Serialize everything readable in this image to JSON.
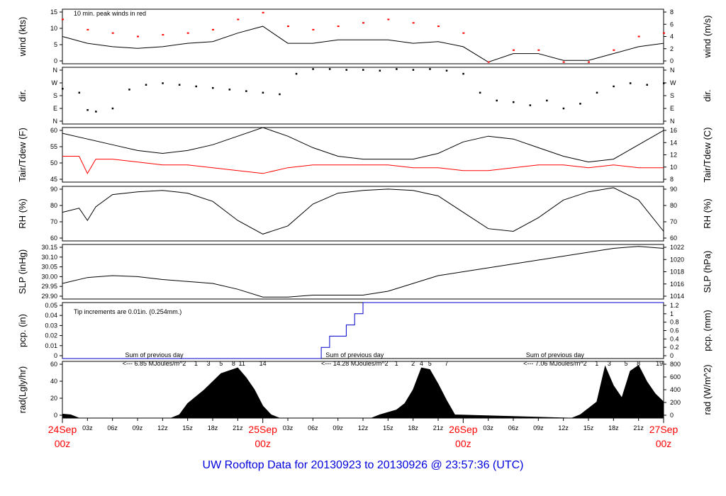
{
  "footer": {
    "title": "UW Rooftop Data for 20130923  to  20130926 @ 23:57:36  (UTC)"
  },
  "colors": {
    "main": "#000000",
    "dew": "#ff0000",
    "peak": "#ff0000",
    "pcp": "#0000cc",
    "sum": "#9900cc"
  },
  "chart_data": [
    {
      "type": "line",
      "id": "wind",
      "left_label": "wind (kts)",
      "right_label": "wind (m/s)",
      "left_ticks": [
        "0",
        "5",
        "10",
        "15"
      ],
      "right_ticks": [
        "0",
        "2",
        "4",
        "6",
        "8"
      ],
      "ylim": [
        0,
        16
      ],
      "annotation": "10 min. peak winds in red",
      "series": [
        {
          "name": "wind",
          "x": [
            0,
            3,
            6,
            9,
            12,
            15,
            18,
            21,
            24,
            27,
            30,
            33,
            36,
            39,
            42,
            45,
            48,
            51,
            54,
            57,
            60,
            63,
            66,
            69,
            72
          ],
          "y": [
            8,
            6,
            5,
            4.5,
            5,
            6,
            6.5,
            9,
            11,
            6,
            6,
            7,
            7,
            7,
            6,
            6.5,
            5,
            0.5,
            3,
            3,
            1,
            1,
            3,
            5,
            6
          ]
        },
        {
          "name": "10 min. peak winds",
          "x": [
            0,
            3,
            6,
            9,
            12,
            15,
            18,
            21,
            24,
            27,
            30,
            33,
            36,
            39,
            42,
            45,
            48,
            51,
            54,
            57,
            60,
            63,
            66,
            69,
            72
          ],
          "y": [
            13,
            10,
            9,
            8,
            8.5,
            9,
            10,
            13,
            15,
            11,
            10,
            11,
            12,
            13,
            12,
            11,
            9,
            0.5,
            4,
            4,
            0.5,
            0.5,
            4,
            8,
            9
          ]
        }
      ]
    },
    {
      "type": "scatter",
      "id": "dir",
      "left_label": "dir.",
      "right_label": "dir.",
      "left_ticks": [
        "N",
        "E",
        "S",
        "W",
        "N"
      ],
      "right_ticks": [
        "N",
        "E",
        "S",
        "W",
        "N"
      ],
      "ylim": [
        0,
        360
      ],
      "series": [
        {
          "name": "direction",
          "x": [
            0,
            2,
            3,
            4,
            6,
            8,
            10,
            12,
            14,
            16,
            18,
            20,
            22,
            24,
            26,
            28,
            30,
            32,
            34,
            36,
            38,
            40,
            42,
            44,
            46,
            48,
            50,
            52,
            54,
            56,
            58,
            60,
            62,
            64,
            66,
            68,
            70,
            72
          ],
          "y": [
            225,
            200,
            90,
            80,
            100,
            220,
            250,
            260,
            250,
            240,
            230,
            220,
            210,
            200,
            190,
            320,
            350,
            350,
            345,
            345,
            340,
            350,
            345,
            350,
            340,
            320,
            200,
            150,
            140,
            120,
            150,
            100,
            130,
            200,
            240,
            260,
            250,
            260
          ]
        }
      ]
    },
    {
      "type": "line",
      "id": "temp",
      "left_label": "Tair/Tdew (F)",
      "right_label": "Tair/Tdew (C)",
      "left_ticks": [
        "45",
        "50",
        "55",
        "60"
      ],
      "right_ticks": [
        "8",
        "10",
        "12",
        "14",
        "16"
      ],
      "ylim": [
        43,
        62
      ],
      "series": [
        {
          "name": "Tair",
          "x": [
            0,
            3,
            6,
            9,
            12,
            15,
            18,
            21,
            24,
            27,
            30,
            33,
            36,
            39,
            42,
            45,
            48,
            51,
            54,
            57,
            60,
            63,
            66,
            69,
            72
          ],
          "y": [
            60,
            58,
            56,
            54,
            53,
            54,
            56,
            59,
            62,
            59,
            55,
            52,
            51,
            51,
            51,
            53,
            57,
            59,
            58,
            55,
            52,
            50,
            51,
            56,
            61
          ]
        },
        {
          "name": "Tdew",
          "x": [
            0,
            2,
            3,
            4,
            6,
            9,
            12,
            15,
            18,
            21,
            24,
            27,
            30,
            33,
            36,
            39,
            42,
            45,
            48,
            51,
            54,
            57,
            60,
            63,
            66,
            69,
            72
          ],
          "y": [
            52,
            52,
            46,
            51,
            51,
            50,
            49,
            49,
            48,
            47,
            46,
            48,
            49,
            49,
            49,
            49,
            48,
            48,
            47,
            47,
            48,
            49,
            49,
            48,
            49,
            48,
            48
          ]
        }
      ]
    },
    {
      "type": "line",
      "id": "rh",
      "left_label": "RH (%)",
      "right_label": "RH (%)",
      "left_ticks": [
        "60",
        "70",
        "80",
        "90"
      ],
      "right_ticks": [
        "60",
        "70",
        "80",
        "90"
      ],
      "ylim": [
        55,
        95
      ],
      "series": [
        {
          "name": "RH",
          "x": [
            0,
            2,
            3,
            4,
            6,
            9,
            12,
            15,
            18,
            21,
            24,
            27,
            30,
            33,
            36,
            39,
            42,
            45,
            48,
            51,
            54,
            57,
            60,
            63,
            66,
            69,
            72
          ],
          "y": [
            76,
            79,
            70,
            80,
            89,
            91,
            92,
            90,
            84,
            70,
            60,
            66,
            82,
            90,
            92,
            93,
            92,
            88,
            76,
            64,
            62,
            72,
            85,
            91,
            94,
            85,
            62
          ]
        }
      ]
    },
    {
      "type": "line",
      "id": "slp",
      "left_label": "SLP (inHg)",
      "right_label": "SLP (hPa)",
      "left_ticks": [
        "29.90",
        "29.95",
        "30.00",
        "30.05",
        "30.10",
        "30.15"
      ],
      "right_ticks": [
        "1014",
        "1016",
        "1018",
        "1020",
        "1022"
      ],
      "ylim": [
        29.9,
        30.18
      ],
      "series": [
        {
          "name": "SLP",
          "x": [
            0,
            3,
            6,
            9,
            12,
            15,
            18,
            21,
            24,
            27,
            30,
            33,
            36,
            39,
            42,
            45,
            48,
            51,
            54,
            57,
            60,
            63,
            66,
            69,
            72
          ],
          "y": [
            29.98,
            30.01,
            30.02,
            30.015,
            30.0,
            29.99,
            29.98,
            29.95,
            29.91,
            29.91,
            29.92,
            29.92,
            29.92,
            29.94,
            29.98,
            30.02,
            30.04,
            30.06,
            30.08,
            30.1,
            30.12,
            30.14,
            30.16,
            30.17,
            30.16
          ]
        }
      ]
    },
    {
      "type": "line",
      "id": "pcp",
      "left_label": "pcp. (in)",
      "right_label": "pcp. (mm)",
      "left_ticks": [
        "0",
        "0.01",
        "0.02",
        "0.03",
        "0.04",
        "0.05"
      ],
      "right_ticks": [
        "0",
        "0.2",
        "0.4",
        "0.6",
        "0.8",
        "1",
        "1.2"
      ],
      "ylim": [
        0,
        0.05
      ],
      "annotation": "Tip increments are 0.01in. (0.254mm.)",
      "series": [
        {
          "name": "precipitation",
          "x": [
            0,
            31,
            31,
            32,
            32,
            34,
            34,
            35,
            35,
            36,
            36,
            72
          ],
          "y": [
            0,
            0,
            0.01,
            0.01,
            0.02,
            0.02,
            0.03,
            0.03,
            0.04,
            0.04,
            0.05,
            0.05
          ]
        }
      ]
    },
    {
      "type": "area",
      "id": "rad",
      "left_label": "rad(Lgly/hr)",
      "right_label": "rad (W/m^2)",
      "left_ticks": [
        "0",
        "20",
        "40",
        "60"
      ],
      "right_ticks": [
        "0",
        "200",
        "400",
        "600",
        "800"
      ],
      "ylim": [
        0,
        70
      ],
      "annotations": [
        {
          "line1": "Sum of previous day",
          "line2": "<--- 6.85 MJoules/m^2",
          "hour": 11
        },
        {
          "line1": "Sum of previous day",
          "line2": "<--- 14.28 MJoules/m^2",
          "hour": 35
        },
        {
          "line1": "Sum of previous day",
          "line2": "<--- 7.06 MJoules/m^2",
          "hour": 59
        }
      ],
      "hour_markers": [
        {
          "label": "1",
          "hour": 16
        },
        {
          "label": "3",
          "hour": 17.5
        },
        {
          "label": "5",
          "hour": 19
        },
        {
          "label": "8",
          "hour": 20.5
        },
        {
          "label": "11",
          "hour": 21.5
        },
        {
          "label": "14",
          "hour": 24
        },
        {
          "label": "1",
          "hour": 40
        },
        {
          "label": "2",
          "hour": 42
        },
        {
          "label": "4",
          "hour": 43
        },
        {
          "label": "5",
          "hour": 44
        },
        {
          "label": "7",
          "hour": 46
        },
        {
          "label": "1",
          "hour": 64
        },
        {
          "label": "3",
          "hour": 65.5
        },
        {
          "label": "5",
          "hour": 67.5
        },
        {
          "label": "8",
          "hour": 69
        },
        {
          "label": "19",
          "hour": 71.5
        }
      ],
      "series": [
        {
          "name": "solar radiation",
          "x": [
            0,
            1,
            2,
            13,
            14,
            15,
            17,
            19,
            21,
            22,
            23,
            24,
            25,
            26,
            37,
            38,
            40,
            41,
            42,
            43,
            44,
            45,
            46,
            47,
            61,
            62,
            63,
            64,
            65,
            66,
            67,
            68,
            69,
            70,
            71,
            72
          ],
          "y": [
            5,
            4,
            0,
            0,
            4,
            18,
            35,
            55,
            62,
            50,
            35,
            15,
            4,
            0,
            0,
            4,
            10,
            18,
            35,
            62,
            60,
            42,
            22,
            4,
            0,
            4,
            12,
            20,
            64,
            40,
            25,
            58,
            65,
            45,
            30,
            20
          ]
        }
      ]
    }
  ],
  "xaxis": {
    "hours": [
      3,
      6,
      9,
      12,
      15,
      18,
      21,
      27,
      30,
      33,
      36,
      39,
      42,
      45,
      51,
      54,
      57,
      60,
      63,
      66,
      69
    ],
    "labels": [
      "03z",
      "06z",
      "09z",
      "12z",
      "15z",
      "18z",
      "21z",
      "03z",
      "06z",
      "09z",
      "12z",
      "15z",
      "18z",
      "21z",
      "03z",
      "06z",
      "09z",
      "12z",
      "15z",
      "18z",
      "21z"
    ],
    "days": [
      {
        "date": "24Sep",
        "time": "00z",
        "hour": 0
      },
      {
        "date": "25Sep",
        "time": "00z",
        "hour": 24
      },
      {
        "date": "26Sep",
        "time": "00z",
        "hour": 48
      },
      {
        "date": "27Sep",
        "time": "00z",
        "hour": 72
      }
    ]
  }
}
